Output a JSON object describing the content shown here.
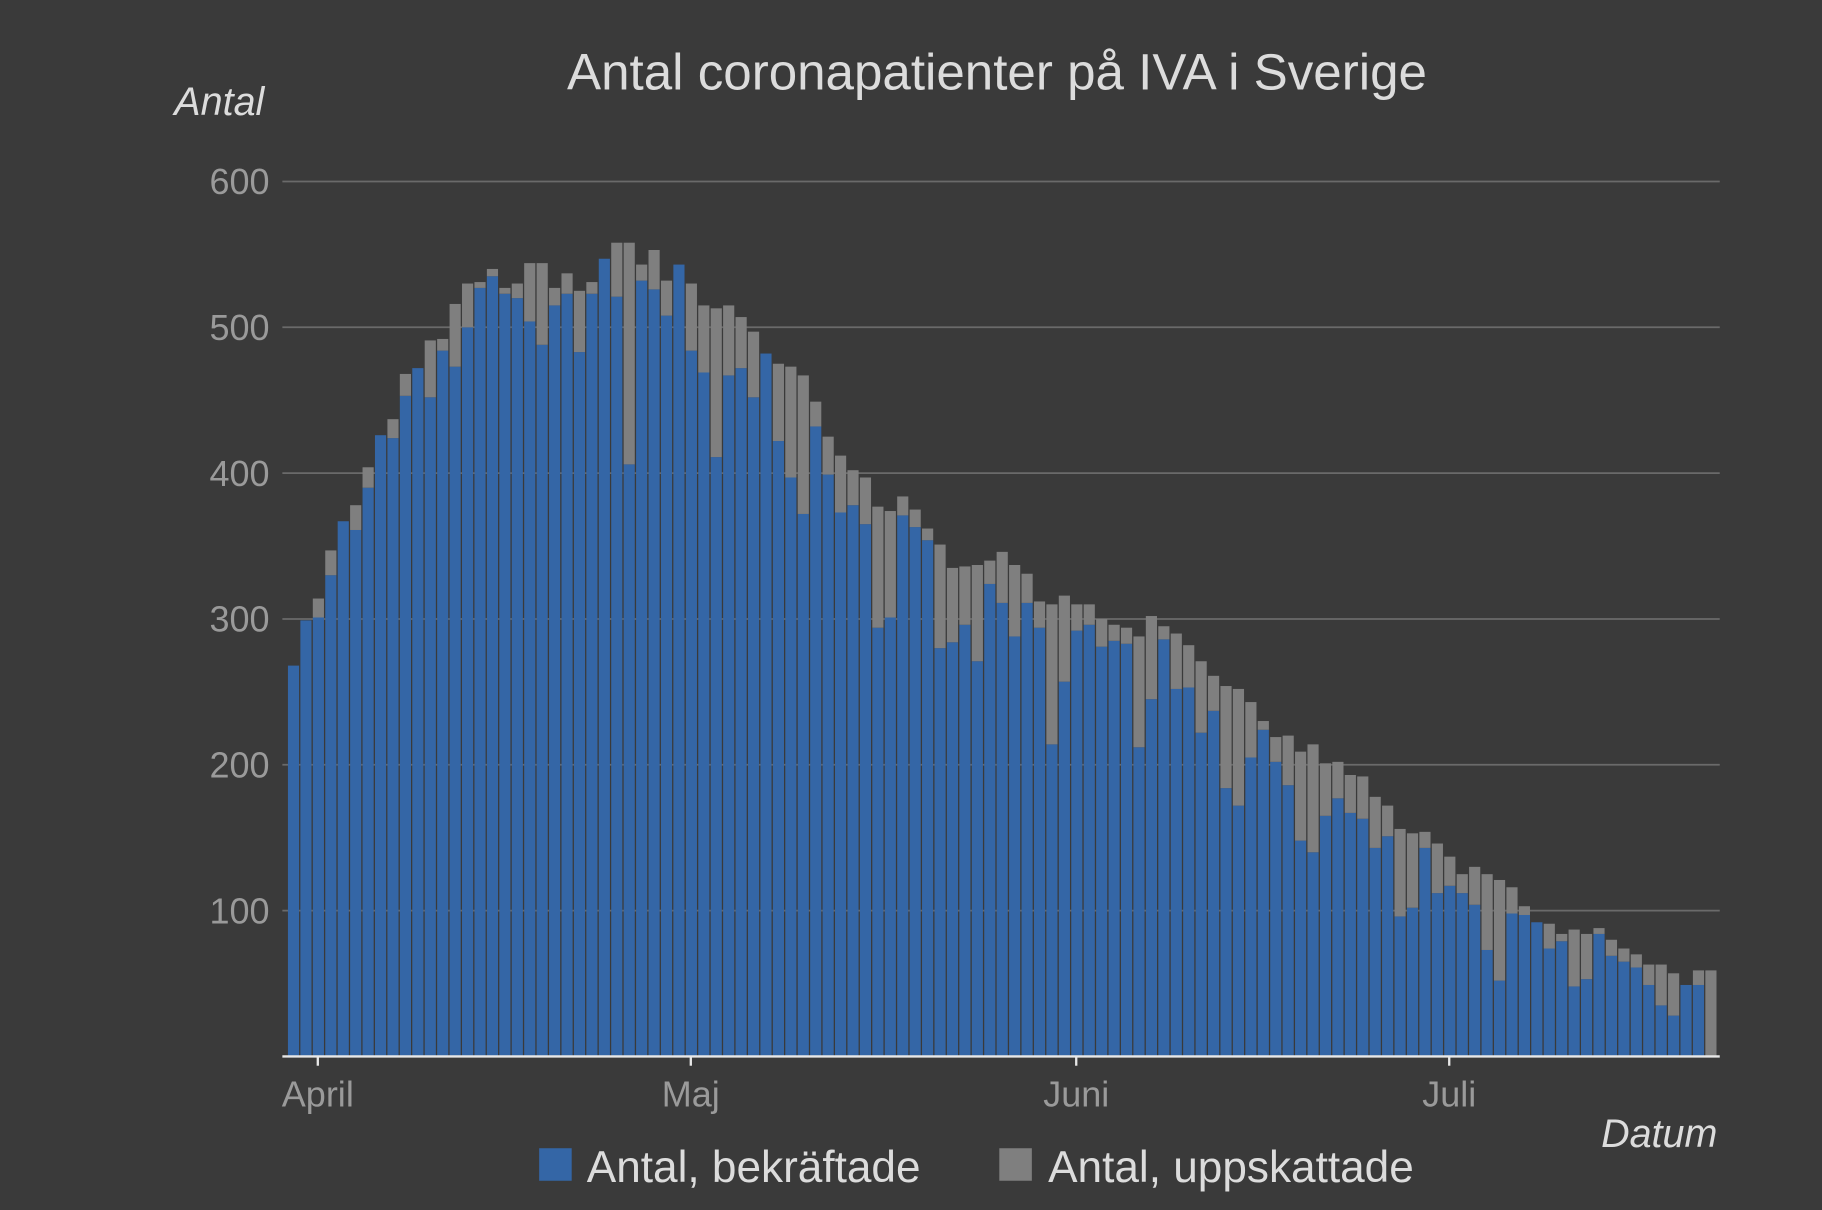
{
  "chart_data": {
    "type": "bar",
    "stacked": true,
    "title": "Antal coronapatienter på IVA i  Sverige",
    "ylabel": "Antal",
    "xlabel": "Datum",
    "ylim": [
      0,
      600
    ],
    "yticks": [
      100,
      200,
      300,
      400,
      500,
      600
    ],
    "grid": true,
    "legend_position": "bottom",
    "x_start": "2020-03-30",
    "month_ticks": [
      {
        "label": "April",
        "day_index": 2
      },
      {
        "label": "Maj",
        "day_index": 32
      },
      {
        "label": "Juni",
        "day_index": 63
      },
      {
        "label": "Juli",
        "day_index": 93
      }
    ],
    "series": [
      {
        "name": "Antal, bekräftade",
        "color": "#3466a6",
        "values": [
          268,
          299,
          301,
          330,
          367,
          361,
          390,
          426,
          424,
          453,
          472,
          452,
          484,
          473,
          500,
          527,
          535,
          523,
          520,
          504,
          488,
          515,
          523,
          483,
          523,
          547,
          521,
          406,
          532,
          526,
          508,
          543,
          484,
          469,
          411,
          467,
          472,
          452,
          482,
          422,
          397,
          372,
          432,
          399,
          373,
          378,
          365,
          294,
          301,
          371,
          363,
          354,
          280,
          284,
          296,
          271,
          324,
          311,
          288,
          311,
          294,
          214,
          257,
          292,
          296,
          281,
          285,
          283,
          212,
          245,
          286,
          252,
          253,
          222,
          237,
          184,
          172,
          205,
          224,
          202,
          186,
          148,
          140,
          165,
          177,
          167,
          163,
          143,
          151,
          96,
          102,
          143,
          112,
          117,
          112,
          104,
          73,
          52,
          98,
          97,
          92,
          74,
          79,
          48,
          53,
          84,
          69,
          65,
          61,
          49,
          35,
          28,
          49,
          49,
          0
        ]
      },
      {
        "name": "Antal, uppskattade",
        "color": "#7f7f7f",
        "values": [
          0,
          0,
          13,
          17,
          0,
          17,
          14,
          0,
          13,
          15,
          0,
          39,
          8,
          43,
          30,
          4,
          5,
          4,
          10,
          40,
          56,
          12,
          14,
          42,
          8,
          0,
          37,
          152,
          11,
          27,
          24,
          0,
          46,
          46,
          102,
          48,
          35,
          45,
          0,
          53,
          76,
          95,
          17,
          26,
          39,
          24,
          32,
          83,
          73,
          13,
          12,
          8,
          71,
          51,
          40,
          66,
          16,
          35,
          49,
          20,
          18,
          96,
          59,
          18,
          14,
          19,
          11,
          11,
          76,
          57,
          9,
          38,
          29,
          49,
          24,
          70,
          80,
          38,
          6,
          17,
          34,
          61,
          74,
          36,
          25,
          26,
          29,
          35,
          21,
          60,
          51,
          11,
          34,
          20,
          13,
          26,
          52,
          69,
          18,
          6,
          0,
          17,
          5,
          39,
          31,
          4,
          11,
          9,
          9,
          14,
          28,
          29,
          0,
          10,
          59
        ]
      }
    ]
  }
}
